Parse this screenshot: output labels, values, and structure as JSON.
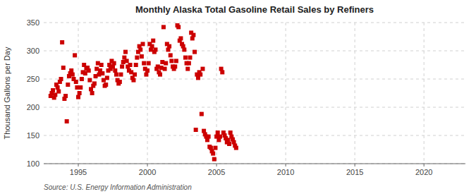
{
  "chart_data": {
    "type": "scatter",
    "title": "Monthly Alaska Total Gasoline Retail Sales by Refiners",
    "ylabel": "Thousand Gallons per Day",
    "source": "Source: U.S. Energy Information Administration",
    "color": "#cc0000",
    "marker": "square",
    "grid": true,
    "xlim": [
      1992.5,
      2023
    ],
    "ylim": [
      100,
      350
    ],
    "xticks": [
      1995,
      2000,
      2005,
      2010,
      2015,
      2020
    ],
    "yticks": [
      100,
      150,
      200,
      250,
      300,
      350
    ],
    "x": [
      1993.0,
      1993.083,
      1993.167,
      1993.25,
      1993.333,
      1993.417,
      1993.5,
      1993.583,
      1993.667,
      1993.75,
      1993.833,
      1993.917,
      1994.0,
      1994.083,
      1994.167,
      1994.25,
      1994.333,
      1994.417,
      1994.5,
      1994.583,
      1994.667,
      1994.75,
      1994.833,
      1994.917,
      1995.0,
      1995.083,
      1995.167,
      1995.25,
      1995.333,
      1995.417,
      1995.5,
      1995.583,
      1995.667,
      1995.75,
      1995.833,
      1995.917,
      1996.0,
      1996.083,
      1996.167,
      1996.25,
      1996.333,
      1996.417,
      1996.5,
      1996.583,
      1996.667,
      1996.75,
      1996.833,
      1996.917,
      1997.0,
      1997.083,
      1997.167,
      1997.25,
      1997.333,
      1997.417,
      1997.5,
      1997.583,
      1997.667,
      1997.75,
      1997.833,
      1997.917,
      1998.0,
      1998.083,
      1998.167,
      1998.25,
      1998.333,
      1998.417,
      1998.5,
      1998.583,
      1998.667,
      1998.75,
      1998.833,
      1998.917,
      1999.0,
      1999.083,
      1999.167,
      1999.25,
      1999.333,
      1999.417,
      1999.5,
      1999.583,
      1999.667,
      1999.75,
      1999.833,
      1999.917,
      2000.0,
      2000.083,
      2000.167,
      2000.25,
      2000.333,
      2000.417,
      2000.5,
      2000.583,
      2000.667,
      2000.75,
      2000.833,
      2000.917,
      2001.0,
      2001.083,
      2001.167,
      2001.25,
      2001.333,
      2001.417,
      2001.5,
      2001.583,
      2001.667,
      2001.75,
      2001.833,
      2001.917,
      2002.0,
      2002.083,
      2002.167,
      2002.25,
      2002.333,
      2002.417,
      2002.5,
      2002.583,
      2002.667,
      2002.75,
      2002.833,
      2002.917,
      2003.0,
      2003.083,
      2003.167,
      2003.25,
      2003.333,
      2003.417,
      2003.5,
      2003.583,
      2003.667,
      2003.75,
      2003.833,
      2003.917,
      2004.0,
      2004.083,
      2004.167,
      2004.25,
      2004.333,
      2004.417,
      2004.5,
      2004.583,
      2004.667,
      2004.75,
      2004.833,
      2004.917,
      2005.0,
      2005.083,
      2005.167,
      2005.25,
      2005.333,
      2005.417,
      2005.5,
      2005.583,
      2005.667,
      2005.75,
      2005.833,
      2005.917,
      2006.0,
      2006.083,
      2006.167,
      2006.25,
      2006.333,
      2006.417
    ],
    "values": [
      220,
      225,
      230,
      217,
      222,
      240,
      235,
      228,
      245,
      250,
      315,
      270,
      215,
      220,
      175,
      240,
      255,
      260,
      265,
      258,
      250,
      292,
      245,
      235,
      218,
      225,
      235,
      250,
      262,
      275,
      260,
      268,
      270,
      265,
      248,
      232,
      225,
      238,
      242,
      255,
      268,
      278,
      258,
      265,
      275,
      260,
      248,
      238,
      240,
      252,
      265,
      275,
      268,
      282,
      272,
      278,
      265,
      258,
      248,
      242,
      245,
      258,
      272,
      280,
      288,
      298,
      282,
      272,
      265,
      275,
      262,
      252,
      248,
      258,
      275,
      288,
      298,
      308,
      302,
      290,
      312,
      278,
      268,
      258,
      265,
      278,
      312,
      302,
      308,
      318,
      298,
      302,
      268,
      272,
      262,
      258,
      270,
      280,
      342,
      268,
      278,
      312,
      302,
      308,
      292,
      282,
      272,
      268,
      272,
      282,
      345,
      342,
      318,
      322,
      312,
      308,
      302,
      288,
      278,
      268,
      278,
      288,
      332,
      322,
      328,
      298,
      160,
      258,
      252,
      262,
      258,
      188,
      268,
      158,
      152,
      148,
      142,
      148,
      130,
      128,
      122,
      118,
      108,
      128,
      148,
      155,
      142,
      148,
      268,
      262,
      155,
      150,
      145,
      138,
      142,
      135,
      155,
      148,
      143,
      138,
      132,
      128
    ]
  }
}
